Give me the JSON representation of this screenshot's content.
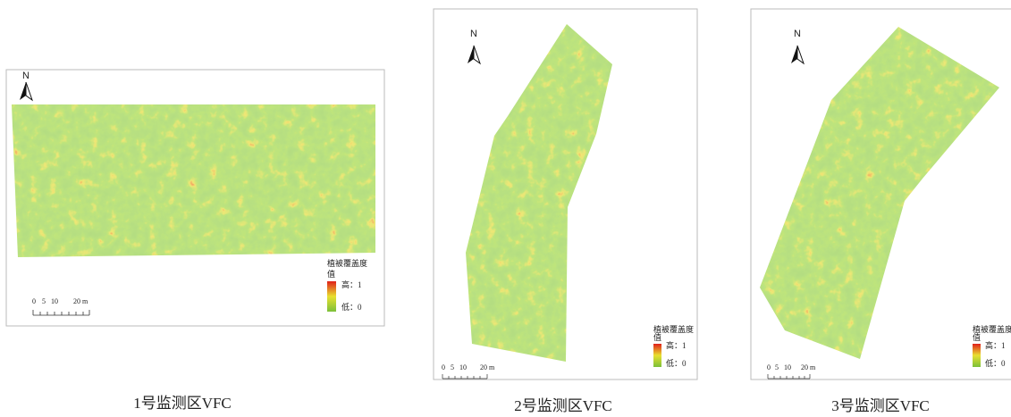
{
  "panels": [
    {
      "north": "N",
      "legend": {
        "title": [
          "植被覆盖度",
          "值"
        ],
        "high": "高：1",
        "low": "低：0"
      },
      "scale": [
        "0",
        "5",
        "10",
        "20 m"
      ],
      "caption": "1号监测区VFC"
    },
    {
      "north": "N",
      "legend": {
        "title": [
          "植被覆盖度",
          "值"
        ],
        "high": "高：1",
        "low": "低：0"
      },
      "scale": [
        "0",
        "5",
        "10",
        "20 m"
      ],
      "caption": "2号监测区VFC"
    },
    {
      "north": "N",
      "legend": {
        "title": [
          "植被覆盖度",
          "值"
        ],
        "high": "高：1",
        "low": "低：0"
      },
      "scale": [
        "0",
        "5",
        "10",
        "20 m"
      ],
      "caption": "3号监测区VFC"
    }
  ]
}
